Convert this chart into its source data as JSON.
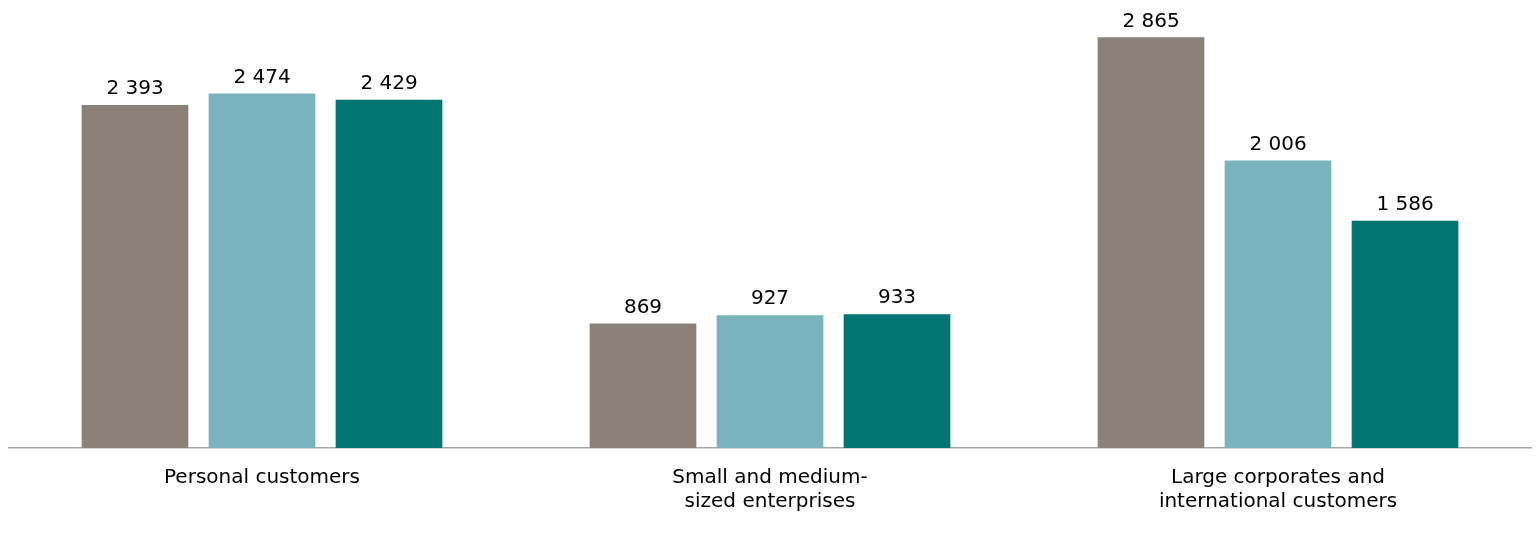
{
  "chart_data": {
    "type": "bar",
    "categories": [
      "Personal customers",
      "Small and medium-sized enterprises",
      "Large corporates and international customers"
    ],
    "series": [
      {
        "color": "#8b8178",
        "values": [
          2393,
          869,
          2865
        ],
        "value_labels": [
          "2 393",
          "869",
          "2 865"
        ]
      },
      {
        "color": "#79b4bd",
        "values": [
          2474,
          927,
          2006
        ],
        "value_labels": [
          "2 474",
          "927",
          "2 006"
        ]
      },
      {
        "color": "#007470",
        "values": [
          2429,
          933,
          1586
        ],
        "value_labels": [
          "2 429",
          "933",
          "1 586"
        ]
      }
    ],
    "grid": false,
    "legend": false
  }
}
